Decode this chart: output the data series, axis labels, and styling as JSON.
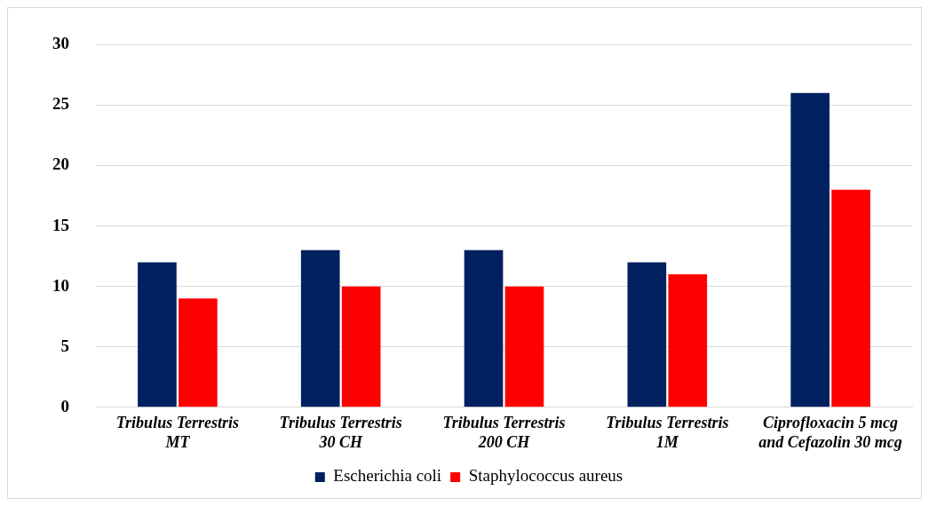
{
  "chart_data": {
    "type": "bar",
    "categories": [
      "Tribulus Terrestris MT",
      "Tribulus Terrestris 30 CH",
      "Tribulus Terrestris 200 CH",
      "Tribulus Terrestris 1M",
      "Ciprofloxacin 5 mcg and Cefazolin 30 mcg"
    ],
    "series": [
      {
        "name": "Escherichia coli",
        "color": "#002060",
        "values": [
          12,
          13,
          13,
          12,
          26
        ]
      },
      {
        "name": "Staphylococcus aureus",
        "color": "#ff0000",
        "values": [
          9,
          10,
          10,
          11,
          18
        ]
      }
    ],
    "ylim": [
      0,
      30
    ],
    "yticks": [
      0,
      5,
      10,
      15,
      20,
      25,
      30
    ],
    "grid": "y",
    "legend": "bottom"
  }
}
